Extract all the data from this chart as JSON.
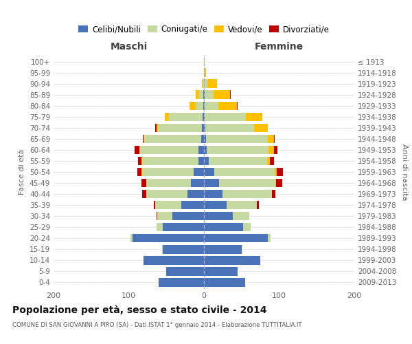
{
  "age_groups": [
    "0-4",
    "5-9",
    "10-14",
    "15-19",
    "20-24",
    "25-29",
    "30-34",
    "35-39",
    "40-44",
    "45-49",
    "50-54",
    "55-59",
    "60-64",
    "65-69",
    "70-74",
    "75-79",
    "80-84",
    "85-89",
    "90-94",
    "95-99",
    "100+"
  ],
  "birth_years": [
    "2009-2013",
    "2004-2008",
    "1999-2003",
    "1994-1998",
    "1989-1993",
    "1984-1988",
    "1979-1983",
    "1974-1978",
    "1969-1973",
    "1964-1968",
    "1959-1963",
    "1954-1958",
    "1949-1953",
    "1944-1948",
    "1939-1943",
    "1934-1938",
    "1929-1933",
    "1924-1928",
    "1919-1923",
    "1914-1918",
    "≤ 1913"
  ],
  "colors": {
    "celibi": "#4a72b8",
    "coniugati": "#c5d9a0",
    "vedovi": "#ffc000",
    "divorziati": "#c00000"
  },
  "maschi": {
    "celibi": [
      60,
      50,
      80,
      55,
      95,
      55,
      42,
      30,
      22,
      17,
      14,
      7,
      7,
      4,
      3,
      2,
      1,
      1,
      0,
      0,
      0
    ],
    "coniugati": [
      0,
      0,
      0,
      1,
      3,
      8,
      20,
      35,
      55,
      60,
      68,
      75,
      78,
      75,
      58,
      45,
      10,
      5,
      2,
      0,
      0
    ],
    "vedovi": [
      0,
      0,
      0,
      0,
      0,
      0,
      0,
      0,
      0,
      0,
      1,
      1,
      1,
      1,
      2,
      5,
      8,
      5,
      1,
      0,
      0
    ],
    "divorziati": [
      0,
      0,
      0,
      0,
      0,
      0,
      1,
      2,
      5,
      6,
      6,
      5,
      6,
      1,
      2,
      0,
      0,
      0,
      0,
      0,
      0
    ]
  },
  "femmine": {
    "celibi": [
      55,
      45,
      75,
      50,
      85,
      52,
      38,
      30,
      25,
      20,
      14,
      6,
      4,
      3,
      2,
      1,
      1,
      1,
      0,
      0,
      0
    ],
    "coniugati": [
      0,
      0,
      0,
      1,
      4,
      10,
      22,
      40,
      65,
      75,
      80,
      78,
      82,
      82,
      65,
      55,
      18,
      12,
      5,
      1,
      0
    ],
    "vedovi": [
      0,
      0,
      0,
      0,
      0,
      0,
      0,
      0,
      0,
      1,
      3,
      4,
      7,
      8,
      18,
      22,
      25,
      22,
      12,
      2,
      1
    ],
    "divorziati": [
      0,
      0,
      0,
      0,
      0,
      0,
      0,
      3,
      5,
      8,
      8,
      5,
      5,
      1,
      0,
      0,
      1,
      1,
      0,
      0,
      0
    ]
  },
  "xlim": 200,
  "title": "Popolazione per età, sesso e stato civile - 2014",
  "subtitle": "COMUNE DI SAN GIOVANNI A PIRO (SA) - Dati ISTAT 1° gennaio 2014 - Elaborazione TUTTITALIA.IT",
  "ylabel": "Fasce di età",
  "ylabel_right": "Anni di nascita",
  "legend_labels": [
    "Celibi/Nubili",
    "Coniugati/e",
    "Vedovi/e",
    "Divorziati/e"
  ],
  "maschi_label": "Maschi",
  "femmine_label": "Femmine"
}
